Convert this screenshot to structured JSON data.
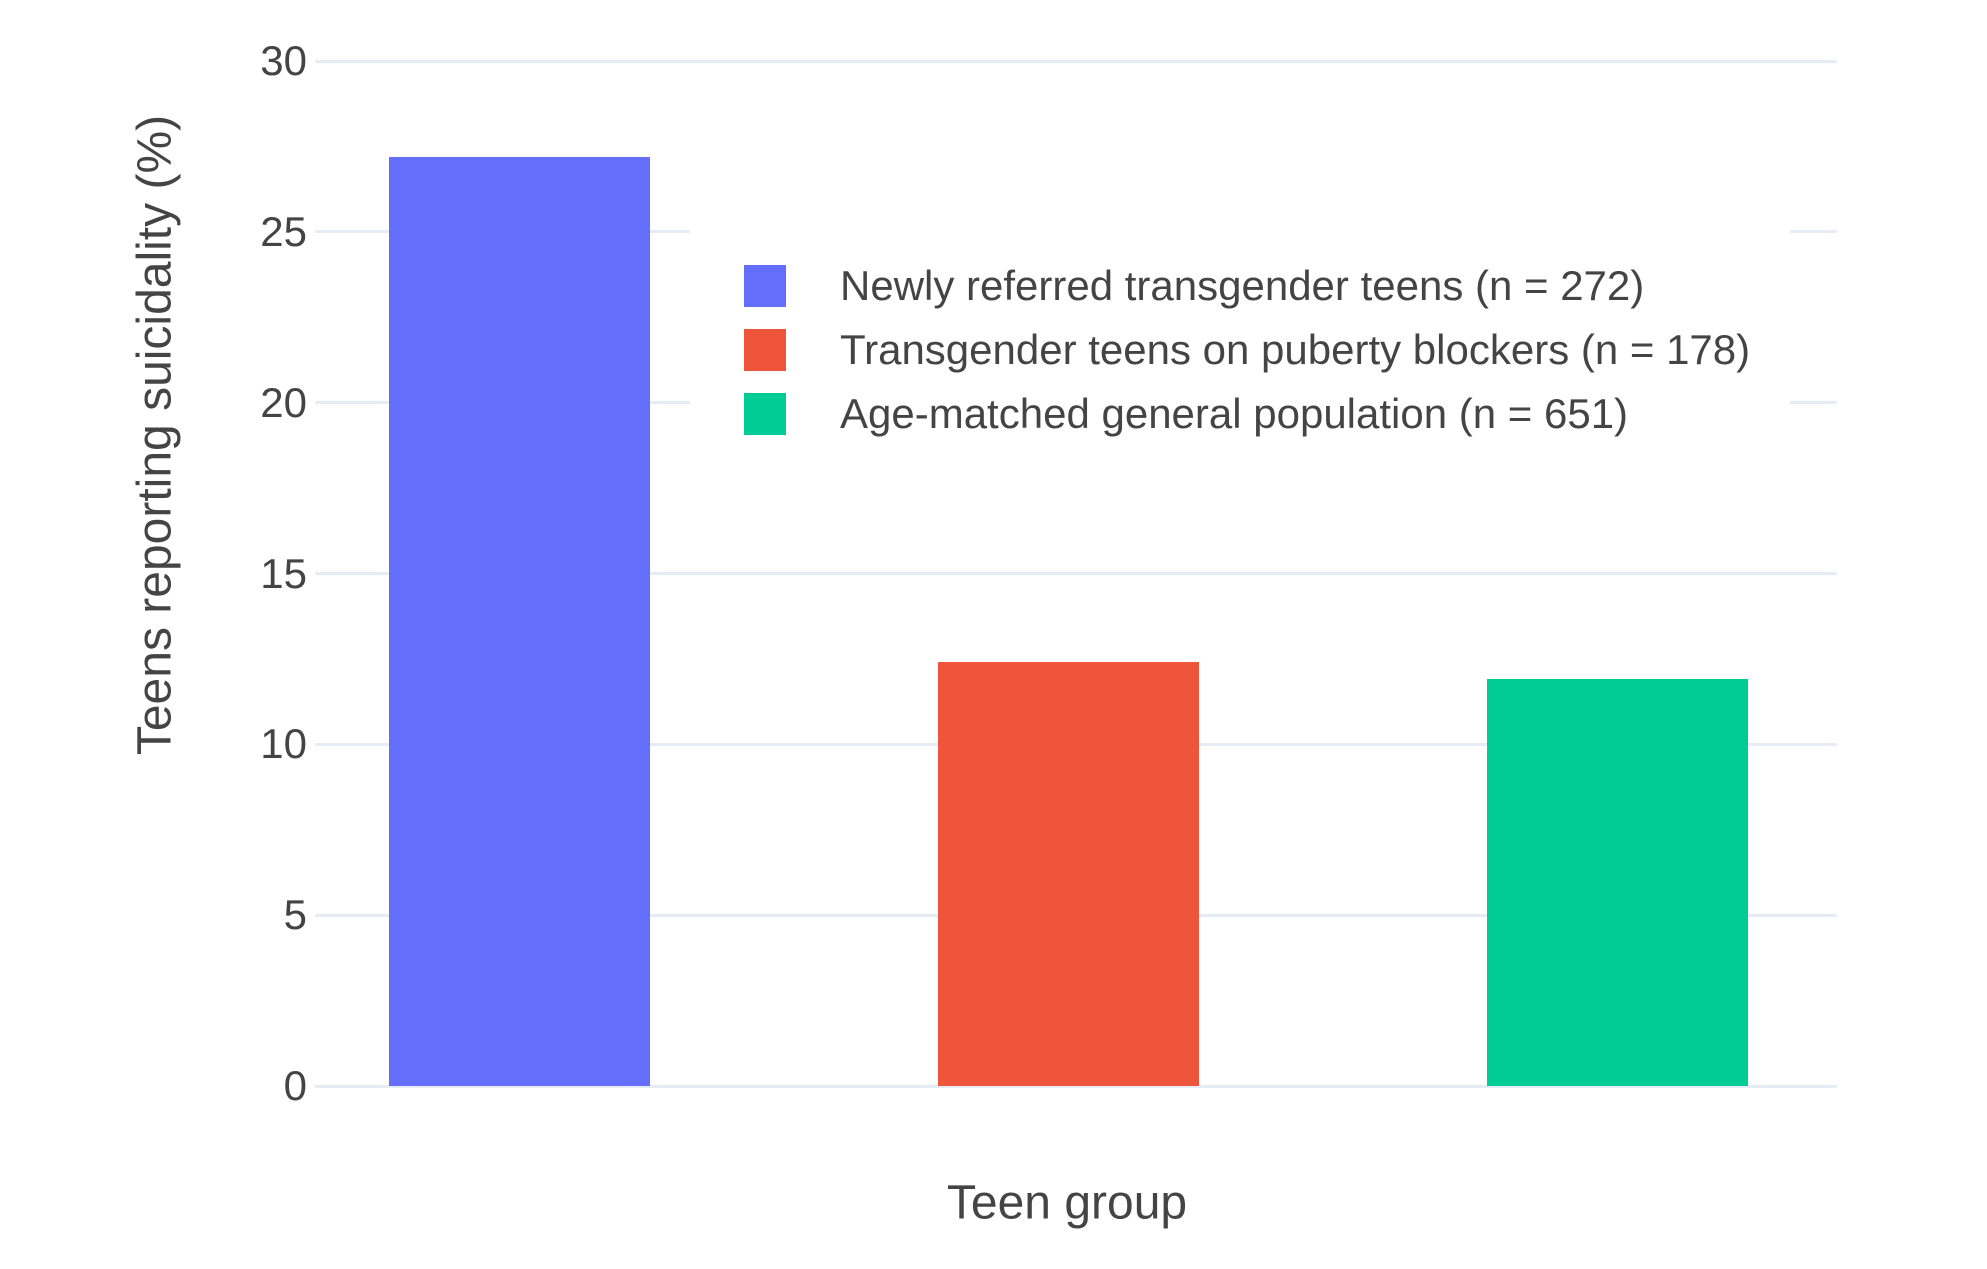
{
  "chart_data": {
    "type": "bar",
    "title": "",
    "xlabel": "Teen group",
    "ylabel": "Teens reporting suicidality (%)",
    "ylim": [
      0,
      30
    ],
    "yticks": [
      0,
      5,
      10,
      15,
      20,
      25,
      30
    ],
    "grid": true,
    "legend_position": "inside plot, upper area",
    "categories": [
      "Newly referred transgender teens",
      "Transgender teens on puberty blockers",
      "Age-matched general population"
    ],
    "bars": [
      {
        "label": "Newly referred transgender teens (n = 272)",
        "value": 27.2,
        "color": "#636EFA"
      },
      {
        "label": "Transgender teens on puberty blockers (n = 178)",
        "value": 12.4,
        "color": "#EF553B"
      },
      {
        "label": "Age-matched general population (n = 651)",
        "value": 11.9,
        "color": "#00CC96"
      }
    ],
    "colors": {
      "grid": "#E5ECF6",
      "text": "#444444",
      "background": "#FFFFFF",
      "series": [
        "#636EFA",
        "#EF553B",
        "#00CC96"
      ]
    }
  }
}
